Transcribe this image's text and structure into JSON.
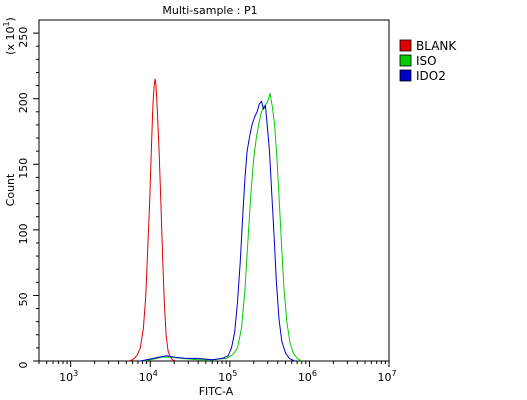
{
  "chart_data": {
    "type": "line",
    "title": "Multi-sample : P1",
    "xlabel": "FITC-A",
    "ylabel": "Count",
    "y_multiplier_label": "(x 10",
    "y_multiplier_exp": "1",
    "x_scale": "log",
    "xlim": [
      400,
      10000000
    ],
    "ylim": [
      0,
      260
    ],
    "x_ticks": [
      {
        "value": 1000,
        "base": "10",
        "exp": "3"
      },
      {
        "value": 10000,
        "base": "10",
        "exp": "4"
      },
      {
        "value": 100000,
        "base": "10",
        "exp": "5"
      },
      {
        "value": 1000000,
        "base": "10",
        "exp": "6"
      },
      {
        "value": 10000000,
        "base": "10",
        "exp": "7"
      }
    ],
    "y_ticks": [
      0,
      50,
      100,
      150,
      200,
      250
    ],
    "legend_position": "right",
    "series": [
      {
        "name": "BLANK",
        "color": "#e00000",
        "points": [
          [
            5400,
            0
          ],
          [
            6000,
            1
          ],
          [
            6800,
            4
          ],
          [
            7500,
            10
          ],
          [
            8200,
            25
          ],
          [
            8800,
            50
          ],
          [
            9300,
            85
          ],
          [
            9800,
            120
          ],
          [
            10300,
            160
          ],
          [
            10800,
            195
          ],
          [
            11200,
            210
          ],
          [
            11500,
            215
          ],
          [
            11800,
            210
          ],
          [
            12300,
            190
          ],
          [
            12900,
            160
          ],
          [
            13600,
            120
          ],
          [
            14300,
            80
          ],
          [
            15000,
            45
          ],
          [
            15800,
            20
          ],
          [
            16700,
            8
          ],
          [
            17800,
            3
          ],
          [
            19000,
            1
          ],
          [
            21000,
            0
          ]
        ]
      },
      {
        "name": "ISO",
        "color": "#00cc00",
        "points": [
          [
            8000,
            0
          ],
          [
            10000,
            1
          ],
          [
            12000,
            2
          ],
          [
            14000,
            3
          ],
          [
            18000,
            3
          ],
          [
            25000,
            2
          ],
          [
            40000,
            1
          ],
          [
            60000,
            1
          ],
          [
            90000,
            2
          ],
          [
            110000,
            5
          ],
          [
            125000,
            10
          ],
          [
            140000,
            25
          ],
          [
            155000,
            55
          ],
          [
            170000,
            95
          ],
          [
            185000,
            130
          ],
          [
            200000,
            155
          ],
          [
            215000,
            170
          ],
          [
            230000,
            180
          ],
          [
            245000,
            188
          ],
          [
            260000,
            193
          ],
          [
            280000,
            195
          ],
          [
            300000,
            198
          ],
          [
            320000,
            204
          ],
          [
            340000,
            195
          ],
          [
            365000,
            180
          ],
          [
            390000,
            155
          ],
          [
            420000,
            120
          ],
          [
            450000,
            85
          ],
          [
            480000,
            55
          ],
          [
            520000,
            30
          ],
          [
            570000,
            14
          ],
          [
            630000,
            6
          ],
          [
            700000,
            2
          ],
          [
            800000,
            0
          ]
        ]
      },
      {
        "name": "IDO2",
        "color": "#0000cc",
        "points": [
          [
            7500,
            0
          ],
          [
            9000,
            1
          ],
          [
            11000,
            2
          ],
          [
            13000,
            3
          ],
          [
            16000,
            4
          ],
          [
            20000,
            3
          ],
          [
            28000,
            2
          ],
          [
            40000,
            2
          ],
          [
            60000,
            1
          ],
          [
            80000,
            2
          ],
          [
            95000,
            4
          ],
          [
            105000,
            10
          ],
          [
            115000,
            22
          ],
          [
            125000,
            45
          ],
          [
            135000,
            75
          ],
          [
            145000,
            110
          ],
          [
            155000,
            140
          ],
          [
            165000,
            160
          ],
          [
            178000,
            172
          ],
          [
            190000,
            180
          ],
          [
            205000,
            186
          ],
          [
            220000,
            190
          ],
          [
            235000,
            196
          ],
          [
            250000,
            198
          ],
          [
            265000,
            192
          ],
          [
            280000,
            195
          ],
          [
            295000,
            180
          ],
          [
            315000,
            160
          ],
          [
            335000,
            130
          ],
          [
            360000,
            95
          ],
          [
            385000,
            60
          ],
          [
            415000,
            32
          ],
          [
            450000,
            15
          ],
          [
            500000,
            6
          ],
          [
            560000,
            2
          ],
          [
            650000,
            0
          ]
        ]
      }
    ]
  }
}
